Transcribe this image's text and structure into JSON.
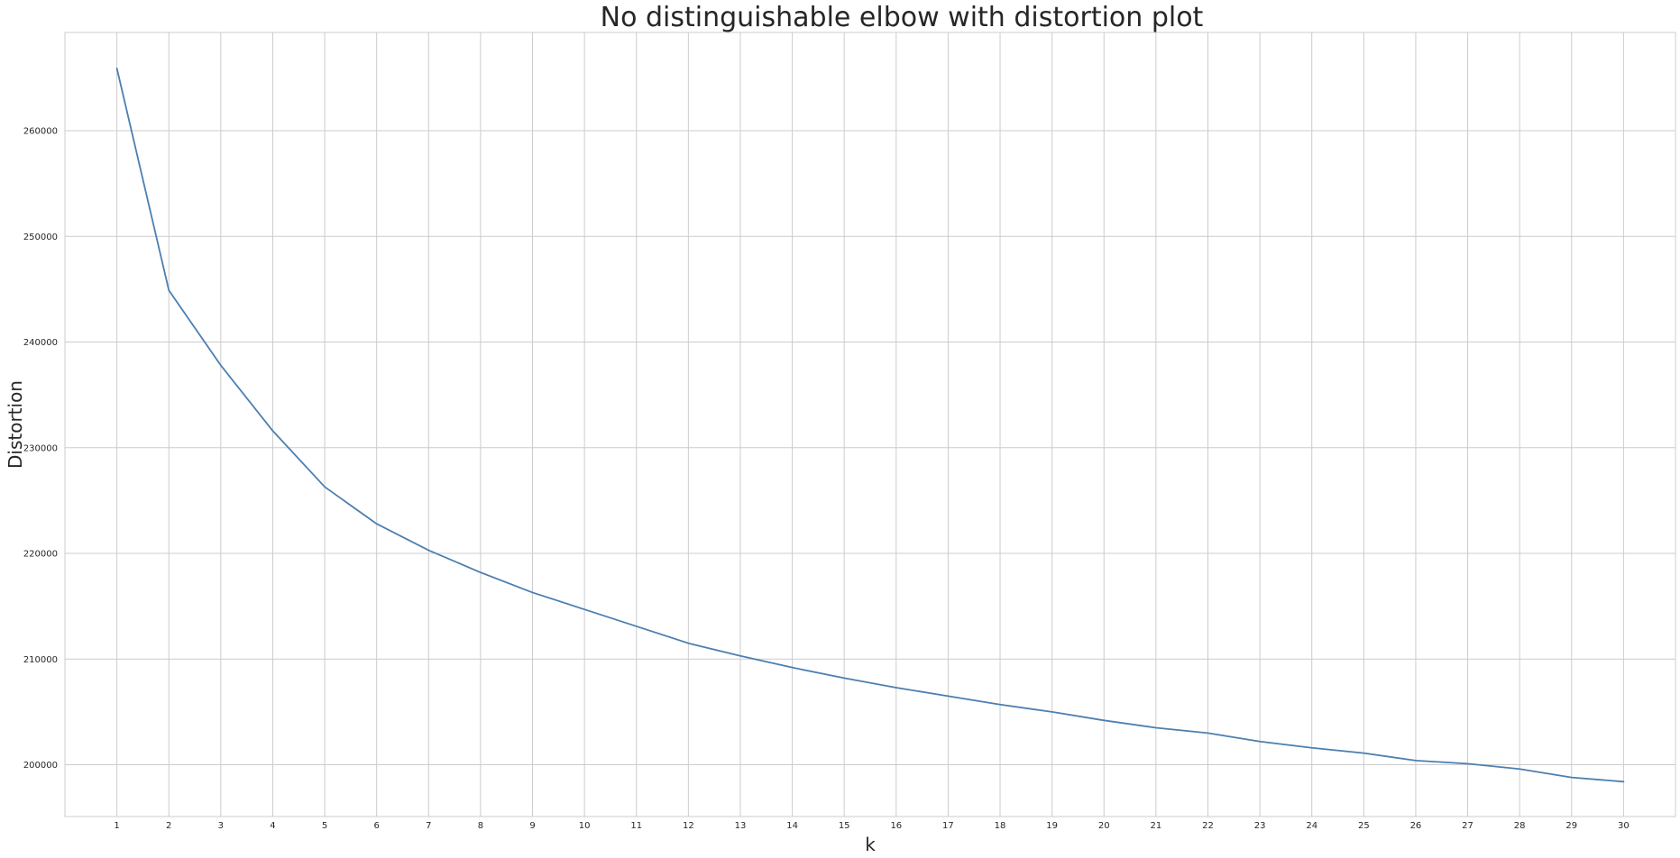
{
  "chart_data": {
    "type": "line",
    "title": "No distinguishable elbow with distortion plot",
    "xlabel": "k",
    "ylabel": "Distortion",
    "x": [
      1,
      2,
      3,
      4,
      5,
      6,
      7,
      8,
      9,
      10,
      11,
      12,
      13,
      14,
      15,
      16,
      17,
      18,
      19,
      20,
      21,
      22,
      23,
      24,
      25,
      26,
      27,
      28,
      29,
      30
    ],
    "series": [
      {
        "values": [
          265900,
          244900,
          237800,
          231600,
          226300,
          222800,
          220300,
          218200,
          216300,
          214700,
          213100,
          211500,
          210300,
          209200,
          208200,
          207300,
          206500,
          205700,
          205000,
          204200,
          203500,
          203000,
          202200,
          201600,
          201100,
          200400,
          200100,
          199600,
          198800,
          198400
        ]
      }
    ],
    "xticks": [
      1,
      2,
      3,
      4,
      5,
      6,
      7,
      8,
      9,
      10,
      11,
      12,
      13,
      14,
      15,
      16,
      17,
      18,
      19,
      20,
      21,
      22,
      23,
      24,
      25,
      26,
      27,
      28,
      29,
      30
    ],
    "yticks": [
      200000,
      210000,
      220000,
      230000,
      240000,
      250000,
      260000
    ],
    "xlim": [
      0,
      31
    ],
    "ylim": [
      195100,
      269300
    ],
    "grid": true,
    "colors": {
      "line": "#4c7fb0",
      "grid": "#cccccc",
      "text": "#262626"
    }
  }
}
